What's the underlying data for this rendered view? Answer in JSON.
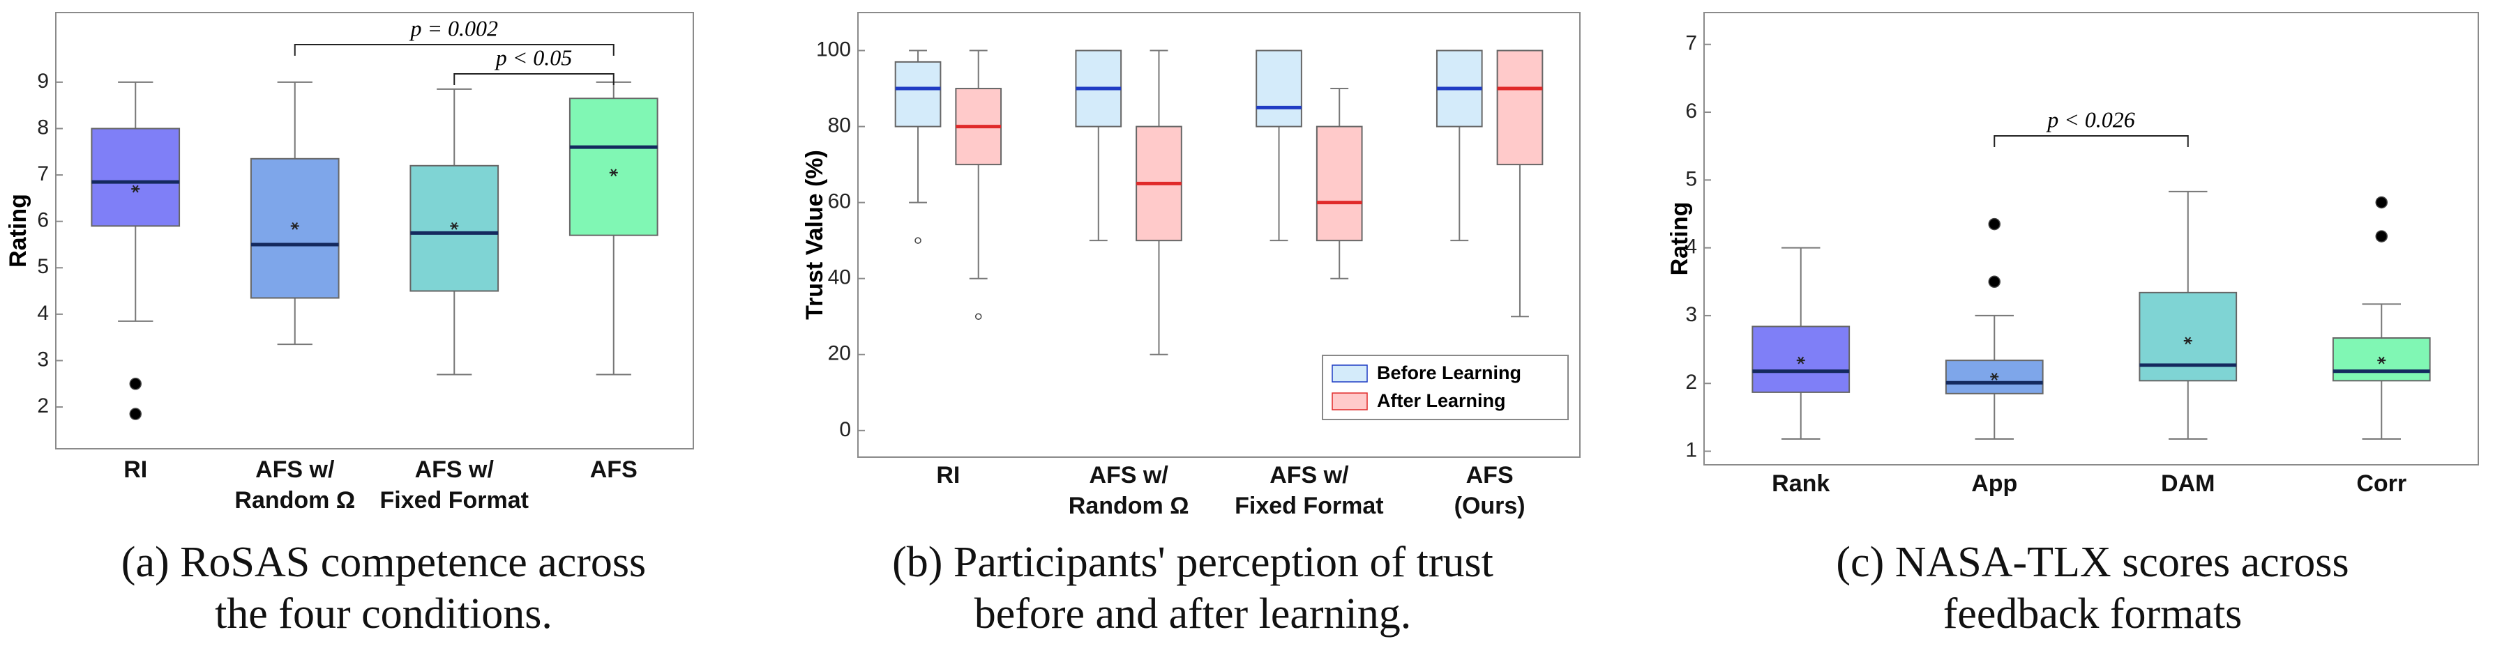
{
  "chart_data": [
    {
      "type": "box",
      "ylabel": "Rating",
      "ylim": [
        1.1,
        10.5
      ],
      "yticks": [
        2,
        3,
        4,
        5,
        6,
        7,
        8,
        9
      ],
      "categories": [
        "RI",
        "AFS w/\nRandom Ω",
        "AFS w/\nFixed Format",
        "AFS"
      ],
      "outlier_style": "filled",
      "series": [
        {
          "colors": [
            "#7f7ff7",
            "#7ea6ea",
            "#7fd4d4",
            "#80f7b4"
          ],
          "median_color": "#14295e",
          "values": [
            {
              "min": 3.85,
              "q1": 5.9,
              "median": 6.85,
              "q3": 8.0,
              "max": 9.0,
              "mean": 6.7,
              "outliers": [
                2.5,
                1.85
              ]
            },
            {
              "min": 3.35,
              "q1": 4.35,
              "median": 5.5,
              "q3": 7.35,
              "max": 9.0,
              "mean": 5.9,
              "outliers": []
            },
            {
              "min": 2.7,
              "q1": 4.5,
              "median": 5.75,
              "q3": 7.2,
              "max": 8.85,
              "mean": 5.9,
              "outliers": []
            },
            {
              "min": 2.7,
              "q1": 5.7,
              "median": 7.6,
              "q3": 8.65,
              "max": 9.0,
              "mean": 7.05,
              "outliers": []
            }
          ]
        }
      ],
      "annotations": [
        {
          "text": "p = 0.002",
          "between": [
            "AFS w/\nRandom Ω",
            "AFS"
          ]
        },
        {
          "text": "p < 0.05",
          "between": [
            "AFS w/\nFixed Format",
            "AFS"
          ]
        }
      ],
      "caption": "(a) RoSAS competence across\nthe four conditions."
    },
    {
      "type": "box",
      "ylabel": "Trust Value (%)",
      "ylim": [
        -7,
        110
      ],
      "yticks": [
        0,
        20,
        40,
        60,
        80,
        100
      ],
      "categories": [
        "RI",
        "AFS w/\nRandom Ω",
        "AFS w/\nFixed Format",
        "AFS\n(Ours)"
      ],
      "outlier_style": "hollow",
      "legend": "lower right",
      "series": [
        {
          "name": "Before Learning",
          "color": "#d4ebfa",
          "median_color": "#1f3cc4",
          "values": [
            {
              "min": 60,
              "q1": 80,
              "median": 90,
              "q3": 97,
              "max": 100,
              "outliers": [
                50
              ]
            },
            {
              "min": 50,
              "q1": 80,
              "median": 90,
              "q3": 100,
              "max": 100,
              "outliers": []
            },
            {
              "min": 50,
              "q1": 80,
              "median": 85,
              "q3": 100,
              "max": 100,
              "outliers": []
            },
            {
              "min": 50,
              "q1": 80,
              "median": 90,
              "q3": 100,
              "max": 100,
              "outliers": []
            }
          ]
        },
        {
          "name": "After Learning",
          "color": "#ffcaca",
          "median_color": "#e02a2a",
          "values": [
            {
              "min": 40,
              "q1": 70,
              "median": 80,
              "q3": 90,
              "max": 100,
              "outliers": [
                30
              ]
            },
            {
              "min": 20,
              "q1": 50,
              "median": 65,
              "q3": 80,
              "max": 100,
              "outliers": []
            },
            {
              "min": 40,
              "q1": 50,
              "median": 60,
              "q3": 80,
              "max": 90,
              "outliers": []
            },
            {
              "min": 30,
              "q1": 70,
              "median": 90,
              "q3": 100,
              "max": 100,
              "outliers": []
            }
          ]
        }
      ],
      "caption": "(b) Participants' perception of trust\nbefore and after learning."
    },
    {
      "type": "box",
      "ylabel": "Rating",
      "ylim": [
        0.8,
        7.47
      ],
      "yticks": [
        1,
        2,
        3,
        4,
        5,
        6,
        7
      ],
      "categories": [
        "Rank",
        "App",
        "DAM",
        "Corr"
      ],
      "outlier_style": "filled",
      "series": [
        {
          "colors": [
            "#7f7ff7",
            "#7ea6ea",
            "#7fd4d4",
            "#80f7b4"
          ],
          "median_color": "#14295e",
          "values": [
            {
              "min": 1.18,
              "q1": 1.87,
              "median": 2.18,
              "q3": 2.84,
              "max": 4.0,
              "mean": 2.34,
              "outliers": []
            },
            {
              "min": 1.18,
              "q1": 1.85,
              "median": 2.01,
              "q3": 2.34,
              "max": 3.0,
              "mean": 2.1,
              "outliers": [
                4.35,
                3.5
              ]
            },
            {
              "min": 1.18,
              "q1": 2.04,
              "median": 2.27,
              "q3": 3.34,
              "max": 4.83,
              "mean": 2.63,
              "outliers": []
            },
            {
              "min": 1.18,
              "q1": 2.04,
              "median": 2.18,
              "q3": 2.67,
              "max": 3.17,
              "mean": 2.34,
              "outliers": [
                4.67,
                4.17
              ]
            }
          ]
        }
      ],
      "annotations": [
        {
          "text": "p < 0.026",
          "between": [
            "App",
            "DAM"
          ]
        }
      ],
      "caption": "(c) NASA-TLX scores across\nfeedback formats"
    }
  ]
}
